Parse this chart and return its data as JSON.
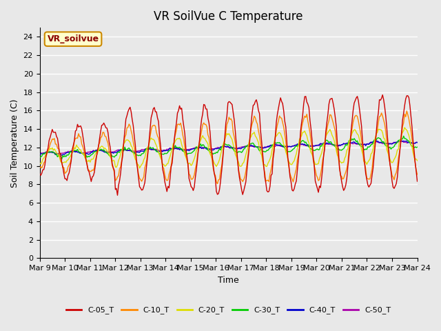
{
  "title": "VR SoilVue C Temperature",
  "xlabel": "Time",
  "ylabel": "Soil Temperature (C)",
  "ylim": [
    0,
    25
  ],
  "yticks": [
    0,
    2,
    4,
    6,
    8,
    10,
    12,
    14,
    16,
    18,
    20,
    22,
    24
  ],
  "x_labels": [
    "Mar 9",
    "Mar 10",
    "Mar 11",
    "Mar 12",
    "Mar 13",
    "Mar 14",
    "Mar 15",
    "Mar 16",
    "Mar 17",
    "Mar 18",
    "Mar 19",
    "Mar 20",
    "Mar 21",
    "Mar 22",
    "Mar 23",
    "Mar 24"
  ],
  "series_colors": {
    "C-05_T": "#cc0000",
    "C-10_T": "#ff8800",
    "C-20_T": "#dddd00",
    "C-30_T": "#00cc00",
    "C-40_T": "#0000cc",
    "C-50_T": "#aa00aa"
  },
  "bg_color": "#e8e8e8",
  "grid_color": "#ffffff",
  "annotation_text": "VR_soilvue"
}
